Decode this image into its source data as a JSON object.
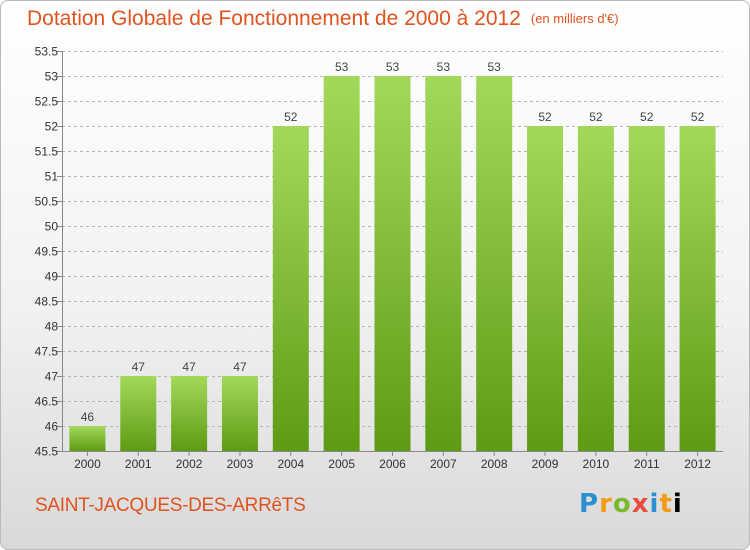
{
  "title": "Dotation Globale de Fonctionnement de 2000 à 2012",
  "unit": "(en milliers d'€)",
  "commune": "SAINT-JACQUES-DES-ARRêTS",
  "logo": "Proxiti",
  "colors": {
    "accent": "#e0531f",
    "bar_light": "#9fd654",
    "bar_dark": "#5e9b14",
    "grid": "#b0b0b0"
  },
  "chart_data": {
    "type": "bar",
    "categories": [
      "2000",
      "2001",
      "2002",
      "2003",
      "2004",
      "2005",
      "2006",
      "2007",
      "2008",
      "2009",
      "2010",
      "2011",
      "2012"
    ],
    "values": [
      46,
      47,
      47,
      47,
      52,
      53,
      53,
      53,
      53,
      52,
      52,
      52,
      52
    ],
    "data_labels": [
      "46",
      "47",
      "47",
      "47",
      "52",
      "53",
      "53",
      "53",
      "53",
      "52",
      "52",
      "52",
      "52"
    ],
    "ylim": [
      45.5,
      53.5
    ],
    "yticks": [
      45.5,
      46,
      46.5,
      47,
      47.5,
      48,
      48.5,
      49,
      49.5,
      50,
      50.5,
      51,
      51.5,
      52,
      52.5,
      53,
      53.5
    ],
    "ytick_labels": [
      "45.5",
      "46",
      "46.5",
      "47",
      "47.5",
      "48",
      "48.5",
      "49",
      "49.5",
      "50",
      "50.5",
      "51",
      "51.5",
      "52",
      "52.5",
      "53",
      "53.5"
    ],
    "grid": true
  }
}
